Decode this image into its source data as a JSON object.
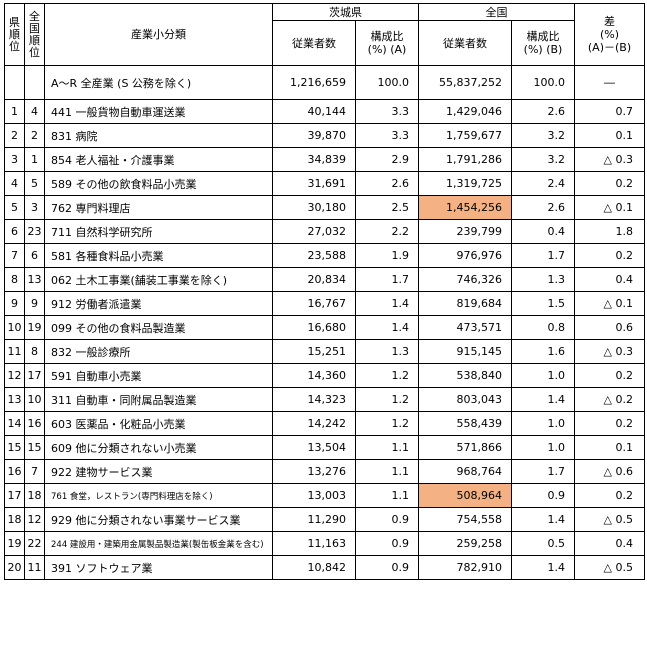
{
  "headers": {
    "pref_rank": "県\n順\n位",
    "nat_rank": "全\n国\n順\n位",
    "industry": "産業小分類",
    "ibaraki": "茨城県",
    "national": "全国",
    "diff": "差\n(%)\n(A)－(B)",
    "employees": "従業者数",
    "ratio_a": "構成比\n(%) (A)",
    "ratio_b": "構成比\n(%) (B)"
  },
  "total_row": {
    "industry": "A～R 全産業 (S 公務を除く)",
    "ibaraki_employees": "1,216,659",
    "ibaraki_ratio": "100.0",
    "national_employees": "55,837,252",
    "national_ratio": "100.0",
    "diff": "―"
  },
  "rows": [
    {
      "pref_rank": "1",
      "nat_rank": "4",
      "industry": "441 一般貨物自動車運送業",
      "ibaraki_employees": "40,144",
      "ibaraki_ratio": "3.3",
      "national_employees": "1,429,046",
      "national_ratio": "2.6",
      "diff": "0.7"
    },
    {
      "pref_rank": "2",
      "nat_rank": "2",
      "industry": "831 病院",
      "ibaraki_employees": "39,870",
      "ibaraki_ratio": "3.3",
      "national_employees": "1,759,677",
      "national_ratio": "3.2",
      "diff": "0.1"
    },
    {
      "pref_rank": "3",
      "nat_rank": "1",
      "industry": "854 老人福祉・介護事業",
      "ibaraki_employees": "34,839",
      "ibaraki_ratio": "2.9",
      "national_employees": "1,791,286",
      "national_ratio": "3.2",
      "diff": "△ 0.3"
    },
    {
      "pref_rank": "4",
      "nat_rank": "5",
      "industry": "589 その他の飲食料品小売業",
      "ibaraki_employees": "31,691",
      "ibaraki_ratio": "2.6",
      "national_employees": "1,319,725",
      "national_ratio": "2.4",
      "diff": "0.2"
    },
    {
      "pref_rank": "5",
      "nat_rank": "3",
      "industry": "762 専門料理店",
      "ibaraki_employees": "30,180",
      "ibaraki_ratio": "2.5",
      "national_employees": "1,454,256",
      "national_ratio": "2.6",
      "diff": "△ 0.1"
    },
    {
      "pref_rank": "6",
      "nat_rank": "23",
      "industry": "711 自然科学研究所",
      "ibaraki_employees": "27,032",
      "ibaraki_ratio": "2.2",
      "national_employees": "239,799",
      "national_ratio": "0.4",
      "diff": "1.8"
    },
    {
      "pref_rank": "7",
      "nat_rank": "6",
      "industry": "581 各種食料品小売業",
      "ibaraki_employees": "23,588",
      "ibaraki_ratio": "1.9",
      "national_employees": "976,976",
      "national_ratio": "1.7",
      "diff": "0.2"
    },
    {
      "pref_rank": "8",
      "nat_rank": "13",
      "industry": "062 土木工事業(舗装工事業を除く)",
      "ibaraki_employees": "20,834",
      "ibaraki_ratio": "1.7",
      "national_employees": "746,326",
      "national_ratio": "1.3",
      "diff": "0.4"
    },
    {
      "pref_rank": "9",
      "nat_rank": "9",
      "industry": "912 労働者派遣業",
      "ibaraki_employees": "16,767",
      "ibaraki_ratio": "1.4",
      "national_employees": "819,684",
      "national_ratio": "1.5",
      "diff": "△ 0.1"
    },
    {
      "pref_rank": "10",
      "nat_rank": "19",
      "industry": "099 その他の食料品製造業",
      "ibaraki_employees": "16,680",
      "ibaraki_ratio": "1.4",
      "national_employees": "473,571",
      "national_ratio": "0.8",
      "diff": "0.6"
    },
    {
      "pref_rank": "11",
      "nat_rank": "8",
      "industry": "832 一般診療所",
      "ibaraki_employees": "15,251",
      "ibaraki_ratio": "1.3",
      "national_employees": "915,145",
      "national_ratio": "1.6",
      "diff": "△ 0.3"
    },
    {
      "pref_rank": "12",
      "nat_rank": "17",
      "industry": "591 自動車小売業",
      "ibaraki_employees": "14,360",
      "ibaraki_ratio": "1.2",
      "national_employees": "538,840",
      "national_ratio": "1.0",
      "diff": "0.2"
    },
    {
      "pref_rank": "13",
      "nat_rank": "10",
      "industry": "311 自動車・同附属品製造業",
      "ibaraki_employees": "14,323",
      "ibaraki_ratio": "1.2",
      "national_employees": "803,043",
      "national_ratio": "1.4",
      "diff": "△ 0.2"
    },
    {
      "pref_rank": "14",
      "nat_rank": "16",
      "industry": "603 医薬品・化粧品小売業",
      "ibaraki_employees": "14,242",
      "ibaraki_ratio": "1.2",
      "national_employees": "558,439",
      "national_ratio": "1.0",
      "diff": "0.2"
    },
    {
      "pref_rank": "15",
      "nat_rank": "15",
      "industry": "609 他に分類されない小売業",
      "ibaraki_employees": "13,504",
      "ibaraki_ratio": "1.1",
      "national_employees": "571,866",
      "national_ratio": "1.0",
      "diff": "0.1"
    },
    {
      "pref_rank": "16",
      "nat_rank": "7",
      "industry": "922 建物サービス業",
      "ibaraki_employees": "13,276",
      "ibaraki_ratio": "1.1",
      "national_employees": "968,764",
      "national_ratio": "1.7",
      "diff": "△ 0.6"
    },
    {
      "pref_rank": "17",
      "nat_rank": "18",
      "industry": "761 食堂，レストラン(専門料理店を除く)",
      "ibaraki_employees": "13,003",
      "ibaraki_ratio": "1.1",
      "national_employees": "508,964",
      "national_ratio": "0.9",
      "diff": "0.2"
    },
    {
      "pref_rank": "18",
      "nat_rank": "12",
      "industry": "929 他に分類されない事業サービス業",
      "ibaraki_employees": "11,290",
      "ibaraki_ratio": "0.9",
      "national_employees": "754,558",
      "national_ratio": "1.4",
      "diff": "△ 0.5"
    },
    {
      "pref_rank": "19",
      "nat_rank": "22",
      "industry": "244 建設用・建築用金属製品製造業(製缶板金業を含む)",
      "ibaraki_employees": "11,163",
      "ibaraki_ratio": "0.9",
      "national_employees": "259,258",
      "national_ratio": "0.5",
      "diff": "0.4"
    },
    {
      "pref_rank": "20",
      "nat_rank": "11",
      "industry": "391 ソフトウェア業",
      "ibaraki_employees": "10,842",
      "ibaraki_ratio": "0.9",
      "national_employees": "782,910",
      "national_ratio": "1.4",
      "diff": "△ 0.5"
    }
  ],
  "highlighted_cells": [
    "rows.4.national_employees",
    "rows.16.national_employees"
  ],
  "highlight_color": "#f4b183"
}
